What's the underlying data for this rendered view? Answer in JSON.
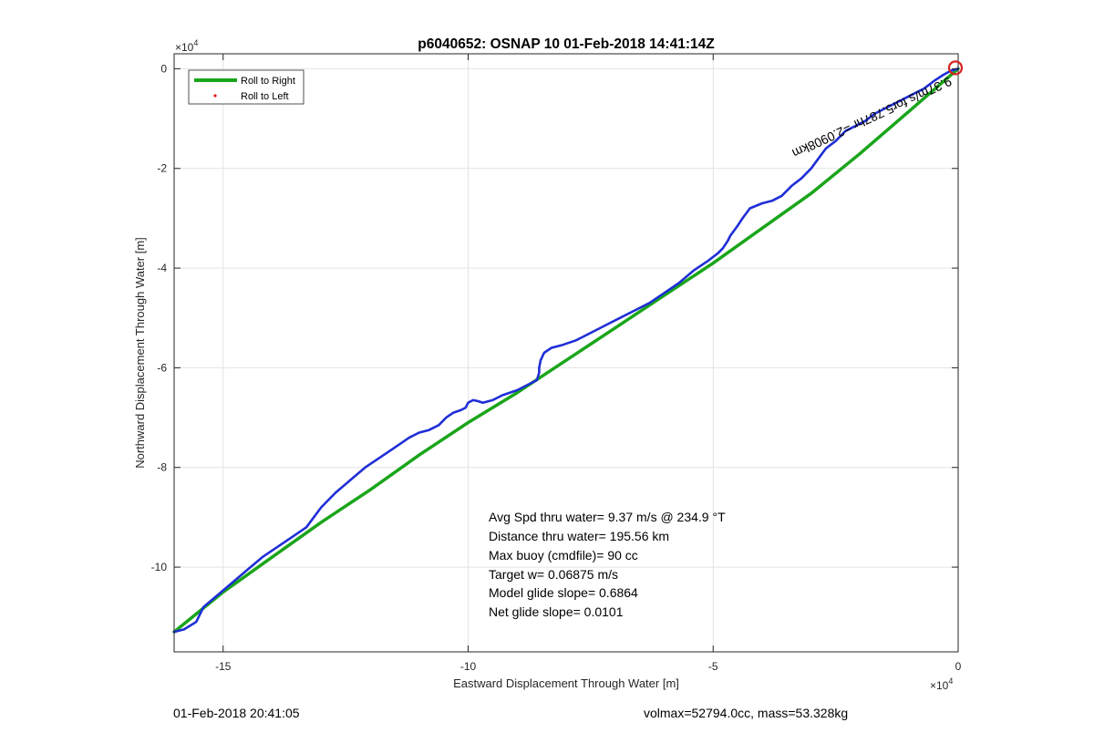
{
  "chart_data": {
    "type": "line",
    "title": "p6040652: OSNAP 10 01-Feb-2018 14:41:14Z",
    "xlabel": "Eastward Displacement Through Water [m]",
    "ylabel": "Northward Displacement Through Water [m]",
    "x_exponent_base": "×10",
    "x_exponent_power": "4",
    "y_exponent_base": "×10",
    "y_exponent_power": "4",
    "xlim": [
      -160000,
      0
    ],
    "ylim": [
      -117000,
      3000
    ],
    "x_ticks": [
      -150000,
      -100000,
      -50000,
      0
    ],
    "x_tick_labels": [
      "-15",
      "-10",
      "-5",
      "0"
    ],
    "y_ticks": [
      0,
      -20000,
      -40000,
      -60000,
      -80000,
      -100000
    ],
    "y_tick_labels": [
      "0",
      "-2",
      "-4",
      "-6",
      "-8",
      "-10"
    ],
    "grid": true,
    "legend_placement": "top-left",
    "legend": [
      "Roll to Right",
      "Roll to Left"
    ],
    "colors": {
      "roll_right": "#1aa51a",
      "roll_left": "#e31a1c",
      "track": "#1f2ed6",
      "marker": "#d62020"
    },
    "series": [
      {
        "name": "Roll to Right",
        "style": "line",
        "x": [
          -160000,
          -150000,
          -140000,
          -130000,
          -120000,
          -110000,
          -100000,
          -90000,
          -80000,
          -70000,
          -60000,
          -50000,
          -40000,
          -30000,
          -20000,
          -10000,
          0
        ],
        "y": [
          -113000,
          -105000,
          -98000,
          -91000,
          -84500,
          -77500,
          -71000,
          -65000,
          -58500,
          -52000,
          -45500,
          -39000,
          -32000,
          -25000,
          -17000,
          -8500,
          0
        ]
      },
      {
        "name": "Roll to Left",
        "style": "markers",
        "x": [],
        "y": []
      },
      {
        "name": "",
        "style": "line",
        "x": [
          -160000,
          -158000,
          -155500,
          -154000,
          -151000,
          -148000,
          -145000,
          -142000,
          -139000,
          -136000,
          -133000,
          -130000,
          -127000,
          -124000,
          -121000,
          -118000,
          -115000,
          -112000,
          -110000,
          -108000,
          -106000,
          -104500,
          -103000,
          -101500,
          -100500,
          -100000,
          -99000,
          -98000,
          -97000,
          -95000,
          -93000,
          -90000,
          -88000,
          -86000,
          -85500,
          -85500,
          -85200,
          -84500,
          -83000,
          -81000,
          -78000,
          -75000,
          -72000,
          -69000,
          -66000,
          -63000,
          -60000,
          -57000,
          -54000,
          -51000,
          -49000,
          -48000,
          -47000,
          -46500,
          -45000,
          -44000,
          -42500,
          -40000,
          -38000,
          -36000,
          -34000,
          -32000,
          -30000,
          -28500,
          -27000,
          -25000,
          -23000,
          -21000,
          -19000,
          -17000,
          -15000,
          -13000,
          -11000,
          -9000,
          -7000,
          -5000,
          -3000,
          -1500,
          0
        ],
        "y": [
          -113000,
          -112500,
          -111000,
          -108000,
          -105500,
          -103000,
          -100500,
          -98000,
          -96000,
          -94000,
          -92000,
          -88000,
          -85000,
          -82500,
          -80000,
          -78000,
          -76000,
          -74000,
          -73000,
          -72500,
          -71500,
          -70000,
          -69000,
          -68500,
          -68000,
          -67000,
          -66500,
          -66700,
          -67000,
          -66500,
          -65500,
          -64500,
          -63500,
          -62500,
          -61000,
          -60000,
          -58500,
          -57000,
          -56000,
          -55500,
          -54500,
          -53000,
          -51500,
          -50000,
          -48500,
          -47000,
          -45000,
          -43000,
          -40500,
          -38500,
          -37000,
          -36000,
          -34500,
          -33500,
          -31500,
          -30000,
          -28000,
          -27000,
          -26500,
          -25500,
          -23500,
          -22000,
          -20000,
          -18000,
          -16000,
          -14500,
          -12500,
          -11500,
          -10500,
          -9000,
          -8000,
          -7000,
          -6000,
          -5000,
          -4000,
          -2500,
          -1200,
          -400,
          0
        ]
      }
    ],
    "marker_end": {
      "x": 0,
      "y": 0
    },
    "annotations": [
      "Avg Spd thru water=  9.37 m/s @ 234.9 °T",
      "Distance thru water= 195.56 km",
      "Max buoy (cmdfile)= 90 cc",
      "Target w= 0.06875 m/s",
      "Model glide slope= 0.6864",
      "Net glide slope= 0.0101"
    ],
    "rotated_label": "9.37m/s for5.787hr =2.0908km",
    "footer_left": "01-Feb-2018 20:41:05",
    "footer_right": "volmax=52794.0cc, mass=53.328kg"
  }
}
